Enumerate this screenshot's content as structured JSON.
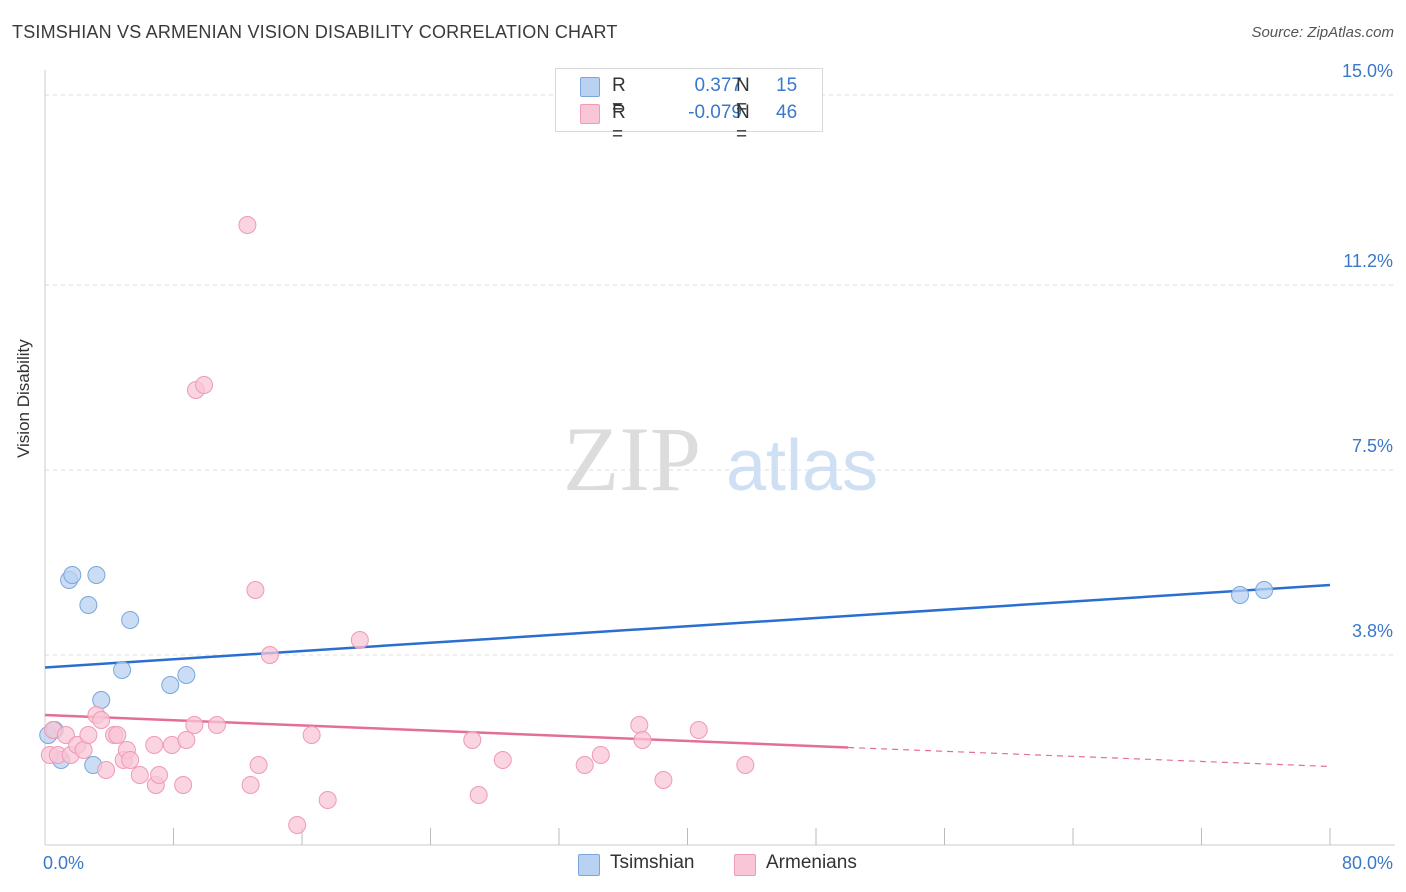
{
  "title": "TSIMSHIAN VS ARMENIAN VISION DISABILITY CORRELATION CHART",
  "source": "Source: ZipAtlas.com",
  "watermark": {
    "zip": "ZIP",
    "atlas": "atlas"
  },
  "legend": {
    "series": [
      {
        "name": "Tsimshian",
        "r_label": "R =",
        "r_value": "0.377",
        "n_label": "N =",
        "n_value": "15"
      },
      {
        "name": "Armenians",
        "r_label": "R =",
        "r_value": "-0.079",
        "n_label": "N =",
        "n_value": "46"
      }
    ]
  },
  "colors": {
    "tsimshian_fill": "#b9d2f2",
    "tsimshian_stroke": "#7aa6dd",
    "tsimshian_line": "#2a6fd0",
    "armenians_fill": "#f8c6d6",
    "armenians_stroke": "#ef9ab6",
    "armenians_line": "#e36f98",
    "axis_label": "#3a78c9",
    "grid": "#dddddd"
  },
  "chart_data": {
    "type": "scatter",
    "title": "TSIMSHIAN VS ARMENIAN VISION DISABILITY CORRELATION CHART",
    "xlabel": "",
    "ylabel": "Vision Disability",
    "xlim": [
      0,
      80
    ],
    "ylim": [
      0,
      15.5
    ],
    "x_tick_labels": [
      "0.0%",
      "80.0%"
    ],
    "y_ticks": [
      3.8,
      7.5,
      11.2,
      15.0
    ],
    "y_tick_labels": [
      "3.8%",
      "7.5%",
      "11.2%",
      "15.0%"
    ],
    "grid": true,
    "series": [
      {
        "name": "Tsimshian",
        "points": [
          [
            0.2,
            2.2
          ],
          [
            0.6,
            2.3
          ],
          [
            1.0,
            1.7
          ],
          [
            1.5,
            5.3
          ],
          [
            1.7,
            5.4
          ],
          [
            2.7,
            4.8
          ],
          [
            3.0,
            1.6
          ],
          [
            3.2,
            5.4
          ],
          [
            3.5,
            2.9
          ],
          [
            4.8,
            3.5
          ],
          [
            5.3,
            4.5
          ],
          [
            7.8,
            3.2
          ],
          [
            8.8,
            3.4
          ],
          [
            74.4,
            5.0
          ],
          [
            75.9,
            5.1
          ]
        ],
        "trend": {
          "x": [
            0,
            80
          ],
          "y": [
            3.55,
            5.2
          ]
        }
      },
      {
        "name": "Armenians",
        "points": [
          [
            0.3,
            1.8
          ],
          [
            0.5,
            2.3
          ],
          [
            0.8,
            1.8
          ],
          [
            1.3,
            2.2
          ],
          [
            1.6,
            1.8
          ],
          [
            2.0,
            2.0
          ],
          [
            2.4,
            1.9
          ],
          [
            2.7,
            2.2
          ],
          [
            3.2,
            2.6
          ],
          [
            3.5,
            2.5
          ],
          [
            3.8,
            1.5
          ],
          [
            4.3,
            2.2
          ],
          [
            4.5,
            2.2
          ],
          [
            4.9,
            1.7
          ],
          [
            5.1,
            1.9
          ],
          [
            5.3,
            1.7
          ],
          [
            5.9,
            1.4
          ],
          [
            6.8,
            2.0
          ],
          [
            6.9,
            1.2
          ],
          [
            7.1,
            1.4
          ],
          [
            7.9,
            2.0
          ],
          [
            8.6,
            1.2
          ],
          [
            8.8,
            2.1
          ],
          [
            9.3,
            2.4
          ],
          [
            9.4,
            9.1
          ],
          [
            9.9,
            9.2
          ],
          [
            10.7,
            2.4
          ],
          [
            12.6,
            12.4
          ],
          [
            12.8,
            1.2
          ],
          [
            13.1,
            5.1
          ],
          [
            13.3,
            1.6
          ],
          [
            14.0,
            3.8
          ],
          [
            15.7,
            0.4
          ],
          [
            16.6,
            2.2
          ],
          [
            17.6,
            0.9
          ],
          [
            19.6,
            4.1
          ],
          [
            26.6,
            2.1
          ],
          [
            27.0,
            1.0
          ],
          [
            28.5,
            1.7
          ],
          [
            33.6,
            1.6
          ],
          [
            34.6,
            1.8
          ],
          [
            37.0,
            2.4
          ],
          [
            37.2,
            2.1
          ],
          [
            38.5,
            1.3
          ],
          [
            40.7,
            2.3
          ],
          [
            43.6,
            1.6
          ]
        ],
        "trend": {
          "x": [
            0,
            50
          ],
          "y": [
            2.6,
            1.95
          ]
        },
        "trend_extension": {
          "x": [
            50,
            80
          ],
          "y": [
            1.95,
            1.57
          ]
        }
      }
    ]
  }
}
